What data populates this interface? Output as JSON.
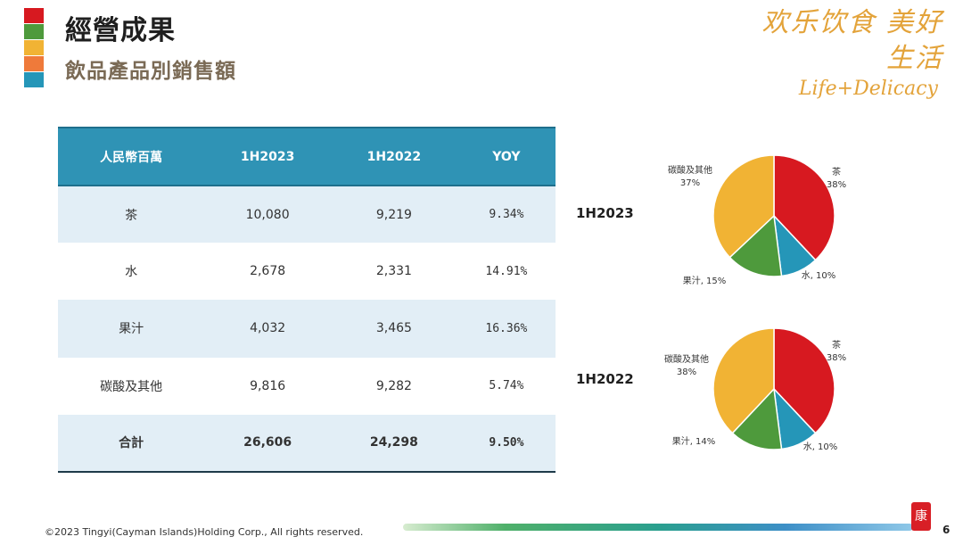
{
  "header": {
    "title": "經營成果",
    "subtitle": "飲品產品別銷售額",
    "accent_colors": [
      "#d71920",
      "#4e9a3c",
      "#f1b334",
      "#ef7a3a",
      "#2596b8"
    ]
  },
  "brand": {
    "chinese": "欢乐饮食 美好生活",
    "english": "Life+Delicacy",
    "color": "#e3a33a"
  },
  "table": {
    "headers": [
      "人民幣百萬",
      "1H2023",
      "1H2022",
      "YOY"
    ],
    "rows": [
      {
        "label": "茶",
        "h2023": "10,080",
        "h2022": "9,219",
        "yoy": "9.34%"
      },
      {
        "label": "水",
        "h2023": "2,678",
        "h2022": "2,331",
        "yoy": "14.91%"
      },
      {
        "label": "果汁",
        "h2023": "4,032",
        "h2022": "3,465",
        "yoy": "16.36%"
      },
      {
        "label": "碳酸及其他",
        "h2023": "9,816",
        "h2022": "9,282",
        "yoy": "5.74%"
      }
    ],
    "total": {
      "label": "合計",
      "h2023": "26,606",
      "h2022": "24,298",
      "yoy": "9.50%"
    },
    "header_color": "#2f93b5"
  },
  "chart_data": [
    {
      "type": "pie",
      "title": "1H2023",
      "series": [
        {
          "name": "茶",
          "value": 38,
          "label": "茶\n38%",
          "color": "#d71920"
        },
        {
          "name": "水",
          "value": 10,
          "label": "水, 10%",
          "color": "#2596b8"
        },
        {
          "name": "果汁",
          "value": 15,
          "label": "果汁, 15%",
          "color": "#4e9a3c"
        },
        {
          "name": "碳酸及其他",
          "value": 37,
          "label": "碳酸及其他\n37%",
          "color": "#f1b334"
        }
      ]
    },
    {
      "type": "pie",
      "title": "1H2022",
      "series": [
        {
          "name": "茶",
          "value": 38,
          "label": "茶\n38%",
          "color": "#d71920"
        },
        {
          "name": "水",
          "value": 10,
          "label": "水, 10%",
          "color": "#2596b8"
        },
        {
          "name": "果汁",
          "value": 14,
          "label": "果汁, 14%",
          "color": "#4e9a3c"
        },
        {
          "name": "碳酸及其他",
          "value": 38,
          "label": "碳酸及其他\n38%",
          "color": "#f1b334"
        }
      ]
    }
  ],
  "footer": {
    "copyright": "©2023 Tingyi(Cayman Islands)Holding Corp., All rights reserved.",
    "seal_char": "康",
    "page_number": "6"
  }
}
